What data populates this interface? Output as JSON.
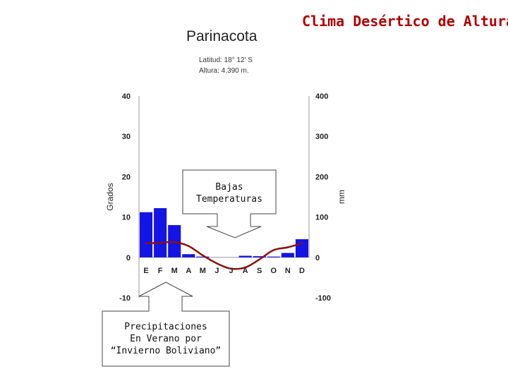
{
  "slide_title": "Clima Desértico de Altura",
  "callouts": {
    "low_temps": [
      "Bajas",
      "Temperaturas"
    ],
    "rain": [
      "Precipitaciones",
      "En Verano por",
      "“Invierno Boliviano”"
    ]
  },
  "chart_data": {
    "type": "bar",
    "title": "Parinacota",
    "subtitle": [
      "Latitud: 18° 12' S",
      "Altura: 4.390 m."
    ],
    "categories": [
      "E",
      "F",
      "M",
      "A",
      "M",
      "J",
      "J",
      "A",
      "S",
      "O",
      "N",
      "D"
    ],
    "ylabel": "Grados",
    "y2label": "mm",
    "ylim": [
      -10,
      40
    ],
    "y2lim": [
      -100,
      400
    ],
    "yticks": [
      40,
      30,
      20,
      10,
      0,
      -10
    ],
    "y2ticks": [
      400,
      300,
      200,
      100,
      0,
      -100
    ],
    "series": [
      {
        "type": "bar",
        "axis": "right",
        "color": "#1414e6",
        "values": [
          112,
          122,
          80,
          8,
          2,
          0,
          0,
          4,
          3,
          2,
          11,
          45
        ]
      },
      {
        "type": "line",
        "axis": "left",
        "color": "#8b1010",
        "values": [
          3.5,
          3.6,
          3.8,
          2.8,
          0.5,
          -1.5,
          -2.8,
          -2.5,
          -0.5,
          1.8,
          2.5,
          3.5
        ]
      }
    ]
  }
}
